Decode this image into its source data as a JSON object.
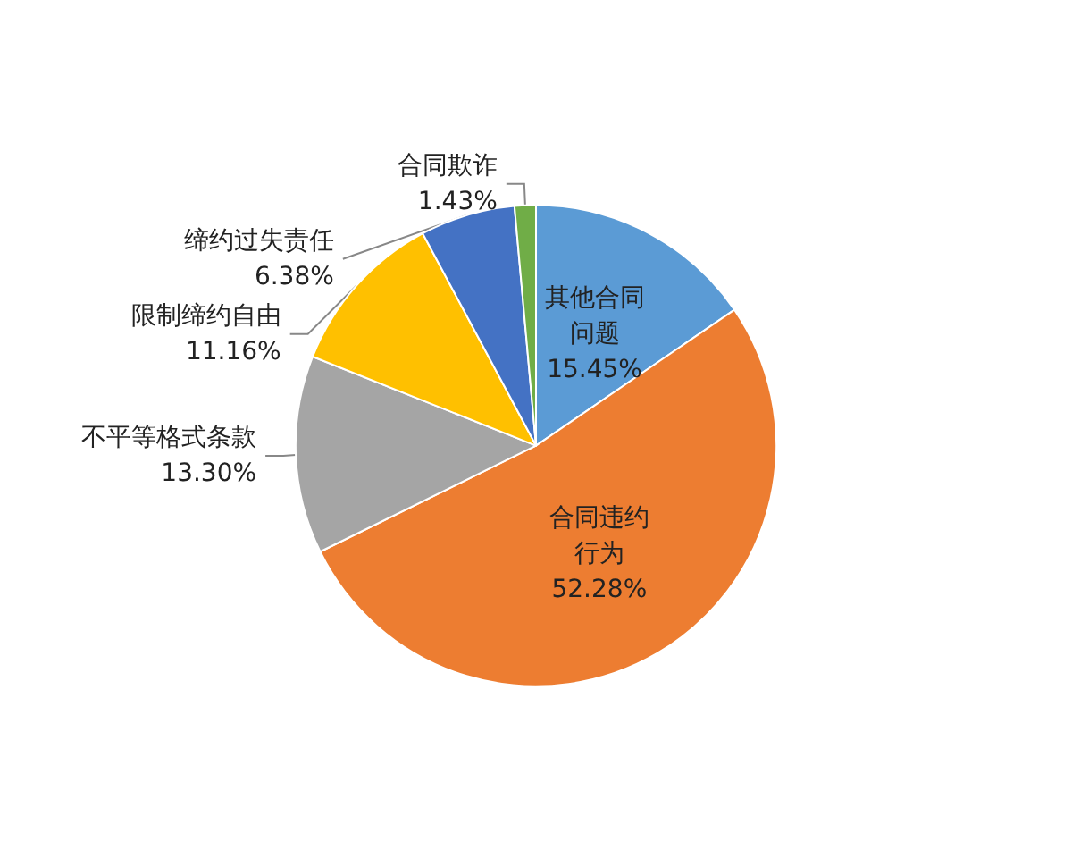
{
  "chart_data": {
    "type": "pie",
    "categories": [
      "其他合同问题",
      "合同违约行为",
      "不平等格式条款",
      "限制缔约自由",
      "缔约过失责任",
      "合同欺诈"
    ],
    "values": [
      15.45,
      52.28,
      13.3,
      11.16,
      6.38,
      1.43
    ],
    "colors": [
      "#5b9bd5",
      "#ed7d31",
      "#a5a5a5",
      "#ffc000",
      "#4472c4",
      "#70ad47"
    ],
    "value_labels": [
      "15.45%",
      "52.28%",
      "13.30%",
      "11.16%",
      "6.38%",
      "1.43%"
    ],
    "legend": false
  }
}
